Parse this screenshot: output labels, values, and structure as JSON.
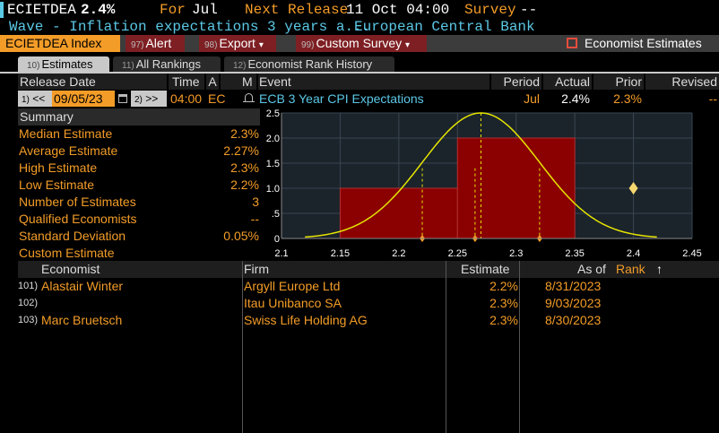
{
  "top": {
    "ticker": "ECIETDEA",
    "value": "2.4%",
    "for_label": "For",
    "for_value": "Jul",
    "next_release_label": "Next Release",
    "next_release_value": "11 Oct 04:00",
    "survey_label": "Survey",
    "survey_value": "--"
  },
  "wave_line": {
    "text": "Wave - Inflation expectations 3 years a...",
    "source": "European Central Bank"
  },
  "actions": {
    "index_label": "ECIETDEA Index",
    "alert_num": "97)",
    "alert_label": "Alert",
    "export_num": "98)",
    "export_label": "Export",
    "survey_num": "99)",
    "survey_label": "Custom Survey",
    "economist_label": "Economist Estimates",
    "dropdown_glyph": "▾"
  },
  "tabs": [
    {
      "num": "10)",
      "label": "Estimates"
    },
    {
      "num": "11)",
      "label": "All Rankings"
    },
    {
      "num": "12)",
      "label": "Economist Rank History"
    }
  ],
  "header": {
    "release_date": "Release Date",
    "time": "Time",
    "a": "A",
    "m": "M",
    "event": "Event",
    "period": "Period",
    "actual": "Actual",
    "prior": "Prior",
    "revised": "Revised"
  },
  "release": {
    "prev_num": "1)",
    "prev": "<<",
    "date": "09/05/23",
    "next_num": "2)",
    "next": ">>",
    "time": "04:00",
    "a": "EC",
    "event": "ECB 3 Year CPI Expectations",
    "period": "Jul",
    "actual": "2.4%",
    "prior": "2.3%",
    "revised": "--"
  },
  "summary": {
    "title": "Summary",
    "rows": [
      {
        "label": "Median Estimate",
        "value": "2.3%"
      },
      {
        "label": "Average Estimate",
        "value": "2.27%"
      },
      {
        "label": "High Estimate",
        "value": "2.3%"
      },
      {
        "label": "Low Estimate",
        "value": "2.2%"
      },
      {
        "label": "Number of Estimates",
        "value": "3"
      },
      {
        "label": "Qualified Economists",
        "value": "--"
      },
      {
        "label": "Standard Deviation",
        "value": "0.05%"
      },
      {
        "label": "Custom Estimate",
        "value": ""
      }
    ]
  },
  "chart_data": {
    "type": "bar",
    "bins": [
      {
        "from": 2.15,
        "to": 2.25,
        "count": 1
      },
      {
        "from": 2.25,
        "to": 2.35,
        "count": 2
      }
    ],
    "xlim": [
      2.1,
      2.45
    ],
    "ylim": [
      0,
      2.5
    ],
    "x_ticks": [
      "2.1",
      "2.15",
      "2.2",
      "2.25",
      "2.3",
      "2.35",
      "2.4",
      "2.45"
    ],
    "y_ticks": [
      "2.5",
      "2.0",
      "1.5",
      "1.0",
      ".5",
      "0"
    ],
    "estimate_markers": [
      2.22,
      2.265,
      2.32
    ],
    "mean": 2.27,
    "stdev": 0.05,
    "actual_marker": 2.4,
    "curve_color": "#e6e600",
    "bar_color": "#8b0000",
    "marker_color": "#f39c28",
    "actual_color": "#f5d76e"
  },
  "economists": {
    "headers": {
      "economist": "Economist",
      "firm": "Firm",
      "estimate": "Estimate",
      "as_of": "As of",
      "rank": "Rank",
      "rank_arrow": "↑"
    },
    "rows": [
      {
        "num": "101)",
        "name": "Alastair Winter",
        "firm": "Argyll Europe Ltd",
        "estimate": "2.2%",
        "as_of": "8/31/2023"
      },
      {
        "num": "102)",
        "name": "",
        "firm": "Itau Unibanco SA",
        "estimate": "2.3%",
        "as_of": "9/03/2023"
      },
      {
        "num": "103)",
        "name": "Marc Bruetsch",
        "firm": "Swiss Life Holding AG",
        "estimate": "2.3%",
        "as_of": "8/30/2023"
      }
    ]
  }
}
